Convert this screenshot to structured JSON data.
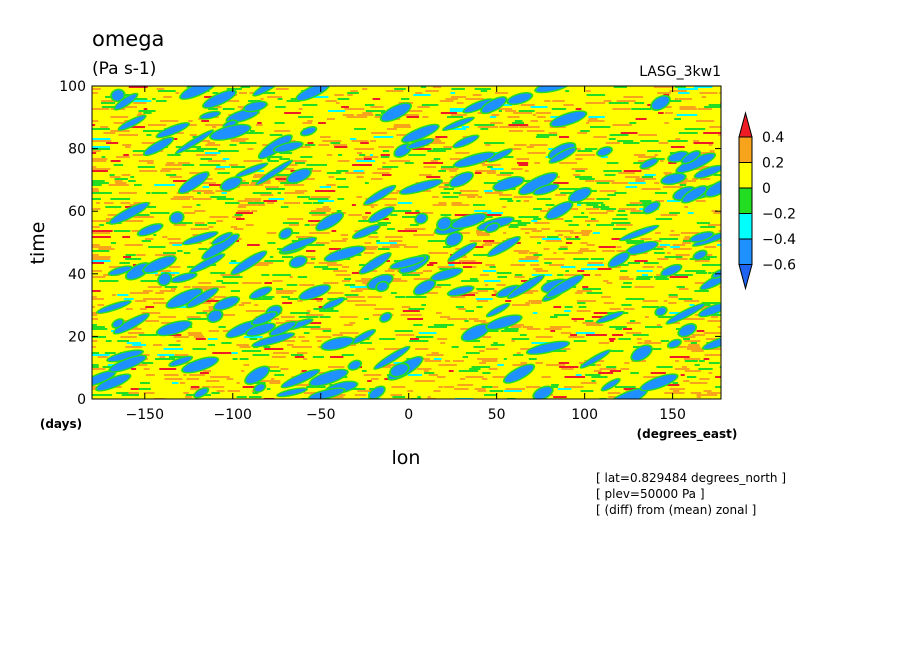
{
  "chart_data": {
    "type": "heatmap",
    "title": "omega",
    "units": "(Pa s-1)",
    "dataset": "LASG_3kw1",
    "xlabel": "lon",
    "xunits": "(degrees_east)",
    "ylabel": "time",
    "yunits": "(days)",
    "x_range": [
      -180,
      177.5
    ],
    "y_range": [
      0,
      100
    ],
    "x_ticks": [
      -150,
      -100,
      -50,
      0,
      50,
      100,
      150
    ],
    "y_ticks": [
      0,
      20,
      40,
      60,
      80,
      100
    ],
    "colorbar": {
      "labels": [
        "0.4",
        "0.2",
        "0",
        "-0.2",
        "-0.4",
        "-0.6"
      ],
      "levels": [
        0.4,
        0.2,
        0,
        -0.2,
        -0.4,
        -0.6
      ],
      "colors": [
        "#ee1c24",
        "#f7a31c",
        "#ffff00",
        "#22dd22",
        "#00ffff",
        "#1e90ff",
        "#1e64f0"
      ]
    },
    "notes": [
      "[ lat=0.829484 degrees_north ]",
      "[ plev=50000 Pa ]",
      "[ (diff) from (mean) zonal ]"
    ]
  }
}
